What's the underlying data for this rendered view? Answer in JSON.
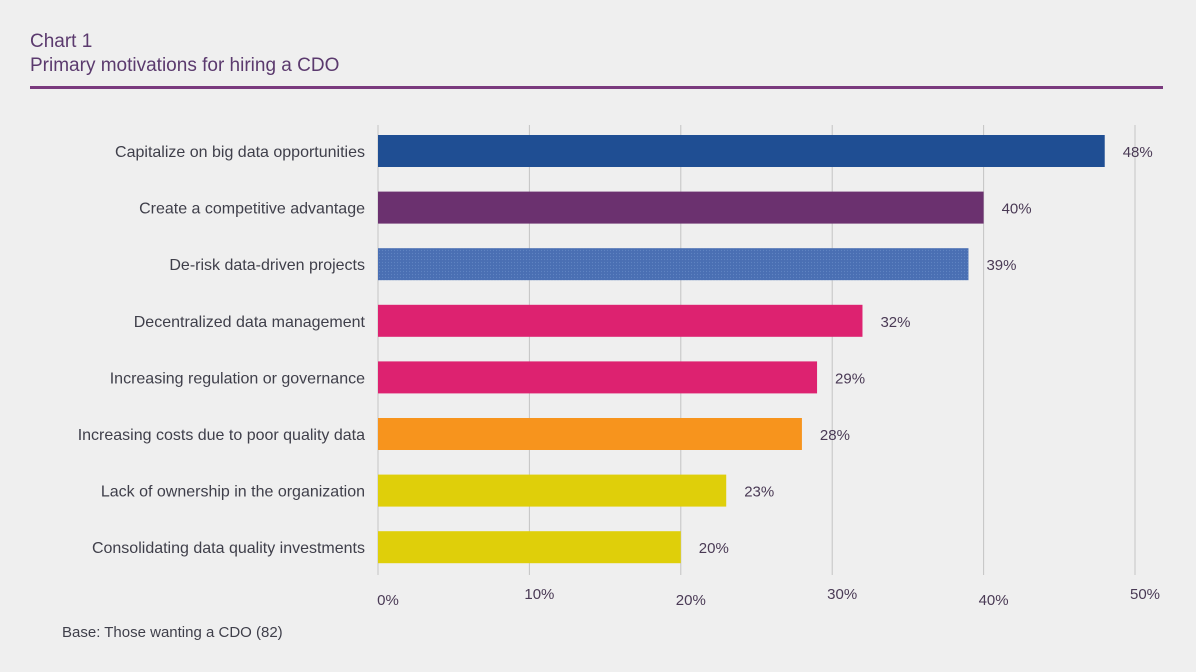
{
  "header": {
    "label": "Chart 1",
    "title": "Primary motivations for hiring a CDO"
  },
  "footnote": "Base: Those wanting a CDO (82)",
  "chart_data": {
    "type": "bar",
    "orientation": "horizontal",
    "categories": [
      "Capitalize on big data opportunities",
      "Create a competitive advantage",
      "De-risk data-driven projects",
      "Decentralized data management",
      "Increasing regulation or governance",
      "Increasing costs due to poor quality data",
      "Lack of ownership in the organization",
      "Consolidating data quality investments"
    ],
    "values": [
      48,
      40,
      39,
      32,
      29,
      28,
      23,
      20
    ],
    "value_labels": [
      "48%",
      "40%",
      "39%",
      "32%",
      "29%",
      "28%",
      "23%",
      "20%"
    ],
    "colors": [
      "#1f4e93",
      "#6b316f",
      "#4a6fb3",
      "#dd2270",
      "#dd2270",
      "#f7941d",
      "#dfcf0a",
      "#dfcf0a"
    ],
    "xlim": [
      0,
      50
    ],
    "ticks": [
      0,
      10,
      20,
      30,
      40,
      50
    ],
    "tick_labels": [
      "0%",
      "10%",
      "20%",
      "30%",
      "40%",
      "50%"
    ],
    "grid": true,
    "legend": "none"
  }
}
